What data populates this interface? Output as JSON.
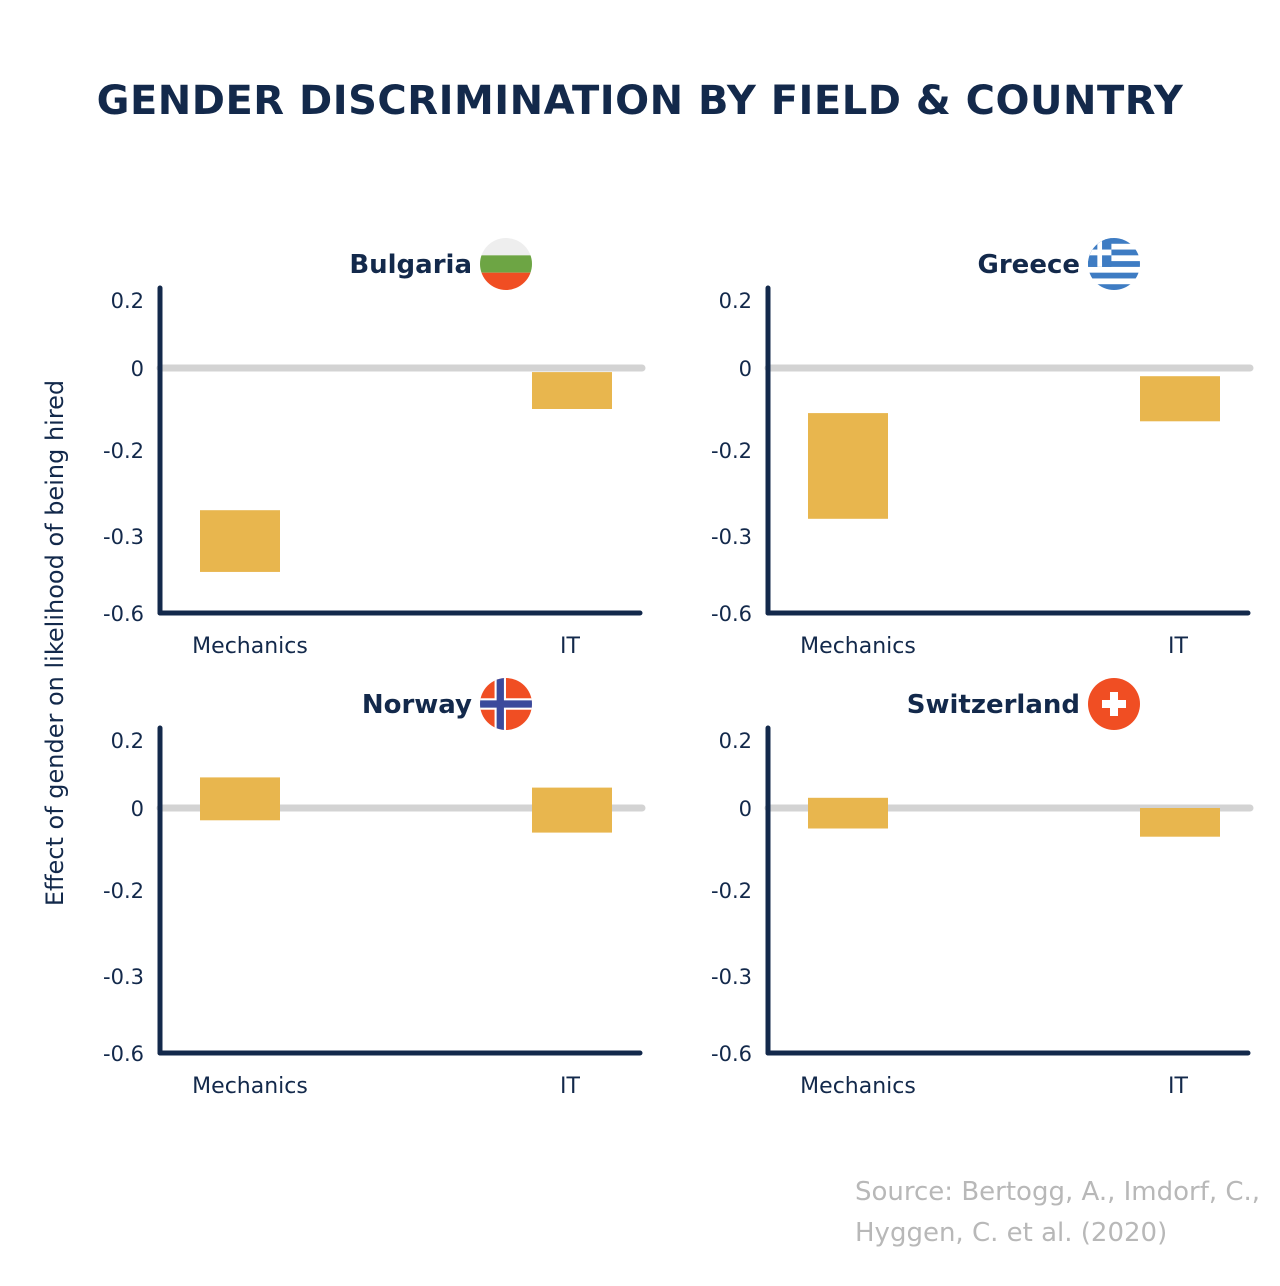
{
  "title": "GENDER DISCRIMINATION BY FIELD & COUNTRY",
  "ylabel": "Effect of gender on likelihood of being hired",
  "source": "Source: Bertogg, A., Imdorf, C., Hyggen, C. et al. (2020)",
  "colors": {
    "bar": "#e8b64e",
    "axis": "#13294b",
    "zero_line": "#d3d3d3",
    "title": "#13294b",
    "source": "#b8b8b8"
  },
  "chart_data": [
    {
      "type": "bar",
      "title": "Bulgaria",
      "flag": "bulgaria-flag-icon",
      "categories": [
        "Mechanics",
        "IT"
      ],
      "ranges": [
        [
          -0.44,
          -0.27
        ],
        [
          -0.1,
          -0.01
        ]
      ],
      "yticks": [
        "0.2",
        "0",
        "-0.2",
        "-0.3",
        "-0.6"
      ]
    },
    {
      "type": "bar",
      "title": "Greece",
      "flag": "greece-flag-icon",
      "categories": [
        "Mechanics",
        "IT"
      ],
      "ranges": [
        [
          -0.28,
          -0.11
        ],
        [
          -0.13,
          -0.02
        ]
      ],
      "yticks": [
        "0.2",
        "0",
        "-0.2",
        "-0.3",
        "-0.6"
      ]
    },
    {
      "type": "bar",
      "title": "Norway",
      "flag": "norway-flag-icon",
      "categories": [
        "Mechanics",
        "IT"
      ],
      "ranges": [
        [
          -0.03,
          0.09
        ],
        [
          -0.06,
          0.06
        ]
      ],
      "yticks": [
        "0.2",
        "0",
        "-0.2",
        "-0.3",
        "-0.6"
      ]
    },
    {
      "type": "bar",
      "title": "Switzerland",
      "flag": "switzerland-flag-icon",
      "categories": [
        "Mechanics",
        "IT"
      ],
      "ranges": [
        [
          -0.05,
          0.03
        ],
        [
          -0.07,
          0.0
        ]
      ],
      "yticks": [
        "0.2",
        "0",
        "-0.2",
        "-0.3",
        "-0.6"
      ]
    }
  ]
}
